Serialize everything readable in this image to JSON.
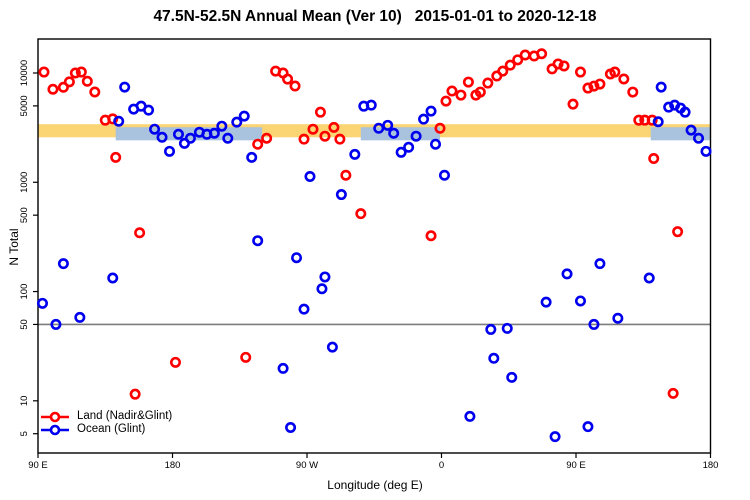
{
  "title": "47.5N-52.5N Annual Mean (Ver 10)   2015-01-01 to 2020-12-18",
  "chart_data": {
    "type": "scatter",
    "title": "47.5N-52.5N Annual Mean (Ver 10)   2015-01-01 to 2020-12-18",
    "xlabel": "Longitude (deg E)",
    "ylabel": "N Total",
    "x_axis": {
      "min": 90,
      "max": 540,
      "note": "longitude axis wraps eastward from 90E",
      "ticks": [
        {
          "value": 90,
          "label": "90 E"
        },
        {
          "value": 180,
          "label": "180"
        },
        {
          "value": 270,
          "label": "90 W"
        },
        {
          "value": 360,
          "label": "0"
        },
        {
          "value": 450,
          "label": "90 E"
        },
        {
          "value": 540,
          "label": "180"
        }
      ]
    },
    "y_axis": {
      "scale": "log",
      "min": 3.33,
      "max": 20470,
      "ticks": [
        {
          "value": 10000,
          "label": "10000"
        },
        {
          "value": 5000,
          "label": "5000"
        },
        {
          "value": 1000,
          "label": "1000"
        },
        {
          "value": 500,
          "label": "500"
        },
        {
          "value": 100,
          "label": "100"
        },
        {
          "value": 50,
          "label": "50"
        },
        {
          "value": 10,
          "label": "10"
        },
        {
          "value": 5,
          "label": "5"
        }
      ]
    },
    "reference_line": {
      "y": 50,
      "color": "#7d7d7d"
    },
    "bands": {
      "land_mean": {
        "color": "#FBD573",
        "y_range": [
          2580,
          3400
        ],
        "segments": [
          [
            90,
            540
          ]
        ]
      },
      "ocean_mean": {
        "color": "#A9C2DE",
        "y_range": [
          2420,
          3190
        ],
        "segments": [
          [
            142,
            240
          ],
          [
            306,
            359
          ],
          [
            500,
            540
          ]
        ]
      }
    },
    "legend_position": "bottom-left",
    "series": [
      {
        "name": "Land (Nadir&Glint)",
        "color": "#FF0000",
        "marker": "open-circle",
        "points": [
          [
            94,
            10200
          ],
          [
            100,
            7100
          ],
          [
            107,
            7400
          ],
          [
            111,
            8300
          ],
          [
            115,
            10000
          ],
          [
            119,
            10200
          ],
          [
            123,
            8400
          ],
          [
            128,
            6700
          ],
          [
            135,
            3700
          ],
          [
            140,
            3800
          ],
          [
            142,
            1690
          ],
          [
            158,
            345
          ],
          [
            155,
            11.5
          ],
          [
            182,
            22.5
          ],
          [
            229,
            25
          ],
          [
            237,
            2230
          ],
          [
            243,
            2530
          ],
          [
            249,
            10400
          ],
          [
            254,
            10000
          ],
          [
            257,
            8800
          ],
          [
            262,
            7600
          ],
          [
            268,
            2480
          ],
          [
            274,
            3060
          ],
          [
            279,
            4380
          ],
          [
            282,
            2640
          ],
          [
            288,
            3180
          ],
          [
            292,
            2480
          ],
          [
            296,
            1160
          ],
          [
            306,
            516
          ],
          [
            353,
            324
          ],
          [
            359,
            3120
          ],
          [
            363,
            5530
          ],
          [
            367,
            6840
          ],
          [
            373,
            6280
          ],
          [
            378,
            8260
          ],
          [
            383,
            6280
          ],
          [
            386,
            6690
          ],
          [
            391,
            8090
          ],
          [
            397,
            9380
          ],
          [
            401,
            10400
          ],
          [
            406,
            11800
          ],
          [
            411,
            13200
          ],
          [
            416,
            14600
          ],
          [
            422,
            14300
          ],
          [
            427,
            15000
          ],
          [
            434,
            10900
          ],
          [
            438,
            12100
          ],
          [
            442,
            11600
          ],
          [
            448,
            5190
          ],
          [
            453,
            10200
          ],
          [
            458,
            7280
          ],
          [
            462,
            7590
          ],
          [
            466,
            7920
          ],
          [
            473,
            9790
          ],
          [
            476,
            10200
          ],
          [
            482,
            8810
          ],
          [
            488,
            6690
          ],
          [
            492,
            3700
          ],
          [
            496,
            3700
          ],
          [
            501,
            3700
          ],
          [
            502,
            1650
          ],
          [
            518,
            353
          ],
          [
            515,
            11.7
          ]
        ]
      },
      {
        "name": "Ocean (Glint)",
        "color": "#0000EE",
        "marker": "open-circle",
        "points": [
          [
            148,
            7430
          ],
          [
            144,
            3620
          ],
          [
            154,
            4670
          ],
          [
            159,
            4970
          ],
          [
            164,
            4570
          ],
          [
            168,
            3060
          ],
          [
            173,
            2580
          ],
          [
            178,
            1920
          ],
          [
            184,
            2750
          ],
          [
            188,
            2270
          ],
          [
            192,
            2530
          ],
          [
            198,
            2870
          ],
          [
            203,
            2750
          ],
          [
            208,
            2810
          ],
          [
            213,
            3260
          ],
          [
            217,
            2530
          ],
          [
            223,
            3550
          ],
          [
            228,
            4030
          ],
          [
            233,
            1690
          ],
          [
            272,
            1130
          ],
          [
            302,
            1800
          ],
          [
            308,
            4970
          ],
          [
            313,
            5080
          ],
          [
            318,
            3120
          ],
          [
            324,
            3320
          ],
          [
            328,
            2810
          ],
          [
            333,
            1880
          ],
          [
            338,
            2090
          ],
          [
            343,
            2640
          ],
          [
            348,
            3780
          ],
          [
            353,
            4480
          ],
          [
            356,
            2230
          ],
          [
            362,
            1160
          ],
          [
            107,
            180
          ],
          [
            93,
            78
          ],
          [
            102,
            50
          ],
          [
            118,
            58
          ],
          [
            140,
            133
          ],
          [
            237,
            292
          ],
          [
            263,
            204
          ],
          [
            282,
            136
          ],
          [
            280,
            106
          ],
          [
            268,
            69
          ],
          [
            293,
            772
          ],
          [
            444,
            145
          ],
          [
            466,
            180
          ],
          [
            499,
            133
          ],
          [
            430,
            80
          ],
          [
            453,
            82
          ],
          [
            478,
            57
          ],
          [
            462,
            50
          ],
          [
            393,
            45
          ],
          [
            404,
            46
          ],
          [
            254,
            19.8
          ],
          [
            259,
            5.7
          ],
          [
            287,
            31
          ],
          [
            395,
            24.5
          ],
          [
            407,
            16.4
          ],
          [
            379,
            7.2
          ],
          [
            436,
            4.7
          ],
          [
            458,
            5.8
          ],
          [
            507,
            7430
          ],
          [
            505,
            3580
          ],
          [
            512,
            4870
          ],
          [
            516,
            5080
          ],
          [
            520,
            4770
          ],
          [
            523,
            4380
          ],
          [
            527,
            3000
          ],
          [
            532,
            2530
          ],
          [
            537,
            1920
          ]
        ]
      }
    ]
  }
}
